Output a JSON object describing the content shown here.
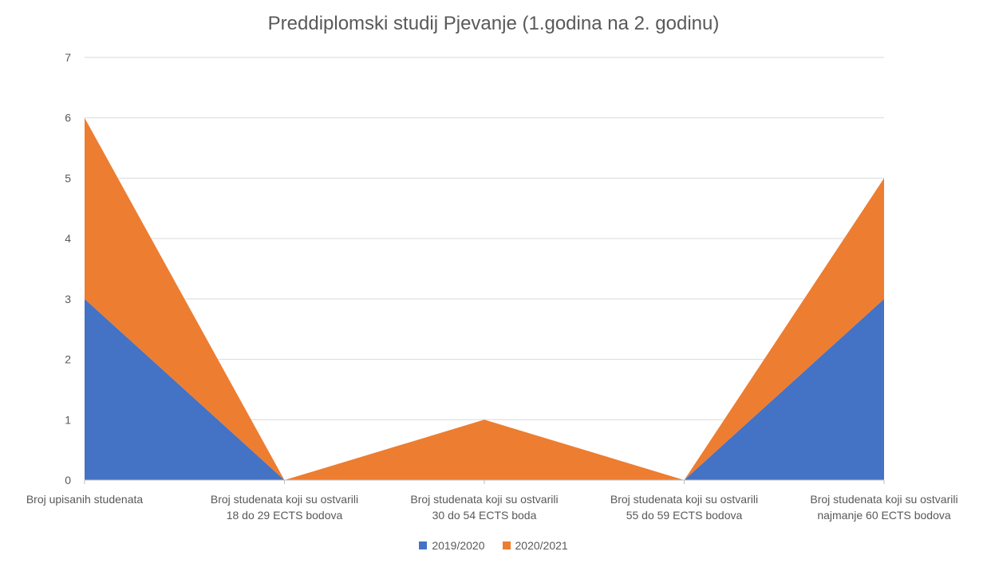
{
  "chart_data": {
    "type": "area",
    "stacked": true,
    "title": "Preddiplomski studij Pjevanje (1.godina na 2. godinu)",
    "xlabel": "",
    "ylabel": "",
    "ylim": [
      0,
      7
    ],
    "yticks": [
      0,
      1,
      2,
      3,
      4,
      5,
      6,
      7
    ],
    "grid": true,
    "legend_position": "bottom",
    "categories": [
      [
        "Broj upisanih studenata"
      ],
      [
        "Broj studenata koji su ostvarili",
        "18 do 29 ECTS bodova"
      ],
      [
        "Broj studenata koji su ostvarili",
        "30 do 54 ECTS boda"
      ],
      [
        "Broj studenata koji su ostvarili",
        "55 do 59 ECTS bodova"
      ],
      [
        "Broj studenata koji su ostvarili",
        "najmanje 60 ECTS bodova"
      ]
    ],
    "series": [
      {
        "name": "2019/2020",
        "color": "#4472c4",
        "values": [
          3,
          0,
          0,
          0,
          3
        ]
      },
      {
        "name": "2020/2021",
        "color": "#ed7d31",
        "values": [
          3,
          0,
          1,
          0,
          2
        ]
      }
    ]
  }
}
